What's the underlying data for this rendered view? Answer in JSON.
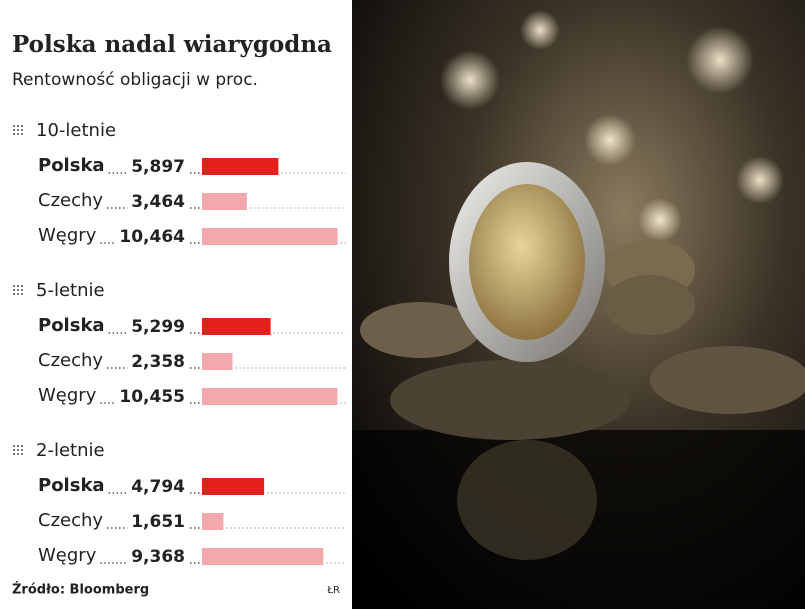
{
  "chart_data": {
    "type": "bar",
    "title": "Polska nadal wiarygodna",
    "subtitle": "Rentowność obligacji w proc.",
    "source": "Źródło: Bloomberg",
    "credit": "ŁR",
    "xlim": [
      0,
      10.5
    ],
    "colors": [
      "#e3201b",
      "#f3a8ad",
      "#f3a8ad"
    ],
    "highlight_color": "#e3201b",
    "groups": [
      {
        "name": "10-letnie",
        "categories": [
          "Polska",
          "Czechy",
          "Węgry"
        ],
        "values": [
          5.897,
          3.464,
          10.464
        ],
        "value_labels": [
          "5,897",
          "3,464",
          "10,464"
        ]
      },
      {
        "name": "5-letnie",
        "categories": [
          "Polska",
          "Czechy",
          "Węgry"
        ],
        "values": [
          5.299,
          2.358,
          10.455
        ],
        "value_labels": [
          "5,299",
          "2,358",
          "10,455"
        ]
      },
      {
        "name": "2-letnie",
        "categories": [
          "Polska",
          "Czechy",
          "Węgry"
        ],
        "values": [
          4.794,
          1.651,
          9.368
        ],
        "value_labels": [
          "4,794",
          "1,651",
          "9,368"
        ]
      }
    ]
  }
}
